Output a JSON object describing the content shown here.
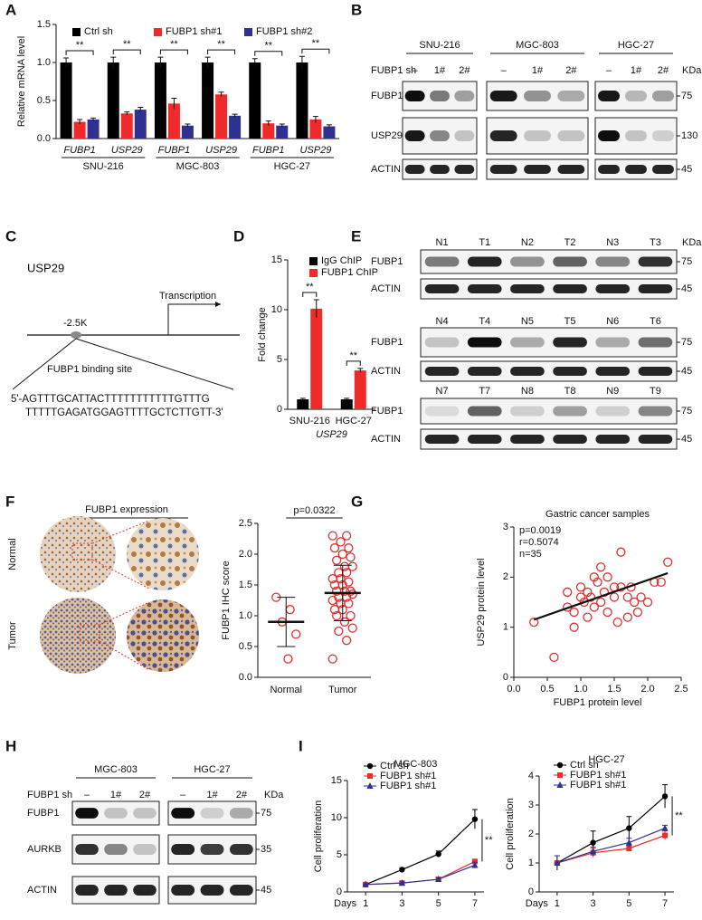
{
  "panel_labels": [
    "A",
    "B",
    "C",
    "D",
    "E",
    "F",
    "G",
    "H",
    "I"
  ],
  "chart_data": [
    {
      "type": "bar",
      "ylabel": "Relative mRNA level",
      "categories": [
        "FUBP1",
        "USP29",
        "FUBP1",
        "USP29",
        "FUBP1",
        "USP29"
      ],
      "groups": [
        "SNU-216",
        "MGC-803",
        "HGC-27"
      ],
      "series": [
        {
          "name": "Ctrl sh",
          "color": "#000000",
          "values": [
            1,
            1,
            1,
            1,
            1,
            1
          ],
          "errors": [
            0.06,
            0.07,
            0.07,
            0.07,
            0.05,
            0.08
          ]
        },
        {
          "name": "FUBP1 sh#1",
          "color": "#ee2a2a",
          "values": [
            0.22,
            0.33,
            0.46,
            0.58,
            0.2,
            0.25
          ],
          "errors": [
            0.03,
            0.02,
            0.07,
            0.03,
            0.03,
            0.04
          ]
        },
        {
          "name": "FUBP1 sh#2",
          "color": "#2e3192",
          "values": [
            0.25,
            0.38,
            0.17,
            0.3,
            0.17,
            0.16
          ],
          "errors": [
            0.02,
            0.03,
            0.02,
            0.02,
            0.02,
            0.02
          ]
        }
      ],
      "ylim": [
        0,
        1.5
      ],
      "yticks": [
        {
          "value": 0,
          "label": "0.0"
        },
        0.5,
        {
          "value": 1,
          "label": "1.0"
        },
        1.5
      ],
      "annotations": [
        "**",
        "**",
        "**",
        "**",
        "**",
        "**"
      ]
    },
    {
      "type": "bar",
      "ylabel": "Fold change",
      "xlabel": "USP29",
      "categories": [
        "SNU-216",
        "HGC-27"
      ],
      "series": [
        {
          "name": "IgG ChIP",
          "color": "#000000",
          "values": [
            1,
            1
          ],
          "errors": [
            0.1,
            0.1
          ]
        },
        {
          "name": "FUBP1 ChIP",
          "color": "#ee2a2a",
          "values": [
            10.1,
            3.9
          ],
          "errors": [
            0.9,
            0.2
          ]
        }
      ],
      "ylim": [
        0,
        15
      ],
      "yticks": [
        0,
        5,
        10,
        15
      ],
      "annotations": [
        "**",
        "**"
      ]
    },
    {
      "type": "dot",
      "ylabel": "FUBP1 IHC score",
      "categories": [
        "Normal",
        "Tumor"
      ],
      "color": "#e03030",
      "values": [
        [
          1.3,
          1.1,
          0.9,
          0.7,
          0.3
        ],
        [
          0.3,
          0.6,
          0.75,
          0.8,
          0.9,
          1.0,
          1.0,
          1.1,
          1.1,
          1.2,
          1.2,
          1.25,
          1.3,
          1.3,
          1.35,
          1.4,
          1.4,
          1.4,
          1.5,
          1.5,
          1.55,
          1.6,
          1.6,
          1.7,
          1.7,
          1.8,
          1.8,
          1.9,
          1.95,
          2.0,
          2.1,
          2.1,
          2.2,
          2.3,
          2.3
        ]
      ],
      "means": [
        0.9,
        1.37
      ],
      "sd": [
        0.4,
        0.45
      ],
      "ylim": [
        0,
        2.5
      ],
      "yticks": [
        {
          "value": 0,
          "label": "0.0"
        },
        0.5,
        {
          "value": 1,
          "label": "1.0"
        },
        1.5,
        {
          "value": 2,
          "label": "2.0"
        },
        2.5
      ],
      "annotation": "p=0.0322"
    },
    {
      "type": "scatter",
      "title": "Gastric cancer samples",
      "xlabel": "FUBP1 protein level",
      "ylabel": "USP29 protein level",
      "color": "#e03030",
      "x": [
        0.3,
        0.6,
        0.8,
        0.8,
        0.9,
        0.9,
        1.0,
        1.0,
        1.05,
        1.1,
        1.1,
        1.15,
        1.2,
        1.2,
        1.25,
        1.3,
        1.3,
        1.35,
        1.4,
        1.4,
        1.5,
        1.5,
        1.55,
        1.6,
        1.6,
        1.7,
        1.7,
        1.75,
        1.8,
        1.85,
        1.9,
        2.0,
        2.1,
        2.2,
        2.3
      ],
      "y": [
        1.1,
        0.4,
        1.4,
        1.7,
        1.3,
        1.0,
        1.6,
        1.8,
        1.5,
        1.7,
        1.2,
        1.6,
        2.0,
        1.4,
        1.9,
        2.2,
        1.5,
        1.7,
        2.0,
        1.3,
        1.8,
        1.6,
        1.1,
        1.8,
        2.5,
        1.6,
        1.2,
        1.8,
        1.5,
        1.3,
        1.6,
        1.5,
        1.9,
        1.9,
        2.3
      ],
      "fit": {
        "x": [
          0.3,
          2.3
        ],
        "y": [
          1.15,
          2.08
        ]
      },
      "xlim": [
        0,
        2.5
      ],
      "xticks": [
        {
          "value": 0,
          "label": "0.0"
        },
        0.5,
        {
          "value": 1,
          "label": "1.0"
        },
        1.5,
        {
          "value": 2,
          "label": "2.0"
        },
        2.5
      ],
      "ylim": [
        0,
        3
      ],
      "yticks": [
        0,
        1,
        2,
        3
      ],
      "annotations": [
        "p=0.0019",
        "r=0.5074",
        "n=35"
      ]
    },
    {
      "type": "line",
      "title": "MGC-803",
      "xlabel": "Days",
      "ylabel": "Cell proliferation",
      "x": [
        1,
        3,
        5,
        7
      ],
      "xlim": [
        0,
        7.5
      ],
      "xticks": [
        1,
        3,
        5,
        7
      ],
      "ylim": [
        0,
        15
      ],
      "yticks": [
        0,
        5,
        10,
        15
      ],
      "series": [
        {
          "name": "Ctrl sh",
          "color": "#000000",
          "values": [
            1,
            3,
            5.1,
            9.8
          ],
          "errors": [
            0.1,
            0.2,
            0.4,
            1.3
          ]
        },
        {
          "name": "FUBP1 sh#1",
          "color": "#ee2a2a",
          "values": [
            1,
            1.2,
            1.7,
            4.1
          ],
          "errors": [
            0.1,
            0.15,
            0.2,
            0.3
          ]
        },
        {
          "name": "FUBP1 sh#1",
          "color": "#2e3192",
          "values": [
            1,
            1.2,
            1.7,
            3.6
          ],
          "errors": [
            0.1,
            0.15,
            0.2,
            0.4
          ]
        }
      ],
      "annotation": "**"
    },
    {
      "type": "line",
      "title": "HGC-27",
      "xlabel": "Days",
      "ylabel": "Cell proliferation",
      "x": [
        1,
        3,
        5,
        7
      ],
      "xlim": [
        0,
        7.5
      ],
      "xticks": [
        1,
        3,
        5,
        7
      ],
      "ylim": [
        0,
        4
      ],
      "yticks": [
        0,
        1,
        2,
        3,
        4
      ],
      "series": [
        {
          "name": "Ctrl sh",
          "color": "#000000",
          "values": [
            1,
            1.7,
            2.2,
            3.3
          ],
          "errors": [
            0.25,
            0.4,
            0.4,
            0.4
          ]
        },
        {
          "name": "FUBP1 sh#1",
          "color": "#ee2a2a",
          "values": [
            1,
            1.35,
            1.5,
            1.95
          ],
          "errors": [
            0.25,
            0.15,
            0.1,
            0.15
          ]
        },
        {
          "name": "FUBP1 sh#1",
          "color": "#2e3192",
          "values": [
            1,
            1.4,
            1.7,
            2.2
          ],
          "errors": [
            0.25,
            0.15,
            0.15,
            0.1
          ]
        }
      ],
      "annotation": "**"
    }
  ],
  "blot_b": {
    "row_label": "FUBP1 sh",
    "unit": "KDa",
    "cell_lines": [
      "SNU-216",
      "MGC-803",
      "HGC-27"
    ],
    "lanes": [
      "–",
      "1#",
      "2#",
      "–",
      "1#",
      "2#",
      "–",
      "1#",
      "2#"
    ],
    "proteins": [
      "FUBP1",
      "USP29",
      "ACTIN"
    ],
    "markers": [
      "75",
      "130",
      "45"
    ]
  },
  "diagram_c": {
    "gene": "USP29",
    "tss": "Transcription",
    "site": "-2.5K",
    "site_label": "FUBP1 binding site",
    "sequence": [
      "5'-AGTTTGCATTACTTTTTTTTTTTGTTTG",
      "TTTTTGAGATGGAGTTTTGCTCTTGTT-3'"
    ]
  },
  "blot_e": {
    "unit": "KDa",
    "blocks": [
      {
        "lanes": [
          "N1",
          "T1",
          "N2",
          "T2",
          "N3",
          "T3"
        ],
        "proteins": [
          "FUBP1",
          "ACTIN"
        ],
        "markers": [
          "75",
          "45"
        ]
      },
      {
        "lanes": [
          "N4",
          "T4",
          "N5",
          "T5",
          "N6",
          "T6"
        ],
        "proteins": [
          "FUBP1",
          "ACTIN"
        ],
        "markers": [
          "75",
          "45"
        ]
      },
      {
        "lanes": [
          "N7",
          "T7",
          "N8",
          "T8",
          "N9",
          "T9"
        ],
        "proteins": [
          "FUBP1",
          "ACTIN"
        ],
        "markers": [
          "75",
          "45"
        ]
      }
    ]
  },
  "ihc_f": {
    "title": "FUBP1 expression",
    "rows": [
      "Normal",
      "Tumor"
    ]
  },
  "blot_h": {
    "row_label": "FUBP1 sh",
    "unit": "KDa",
    "cell_lines": [
      "MGC-803",
      "HGC-27"
    ],
    "lanes": [
      "–",
      "1#",
      "2#",
      "–",
      "1#",
      "2#"
    ],
    "proteins": [
      "FUBP1",
      "AURKB",
      "ACTIN"
    ],
    "markers": [
      "75",
      "35",
      "45"
    ]
  }
}
